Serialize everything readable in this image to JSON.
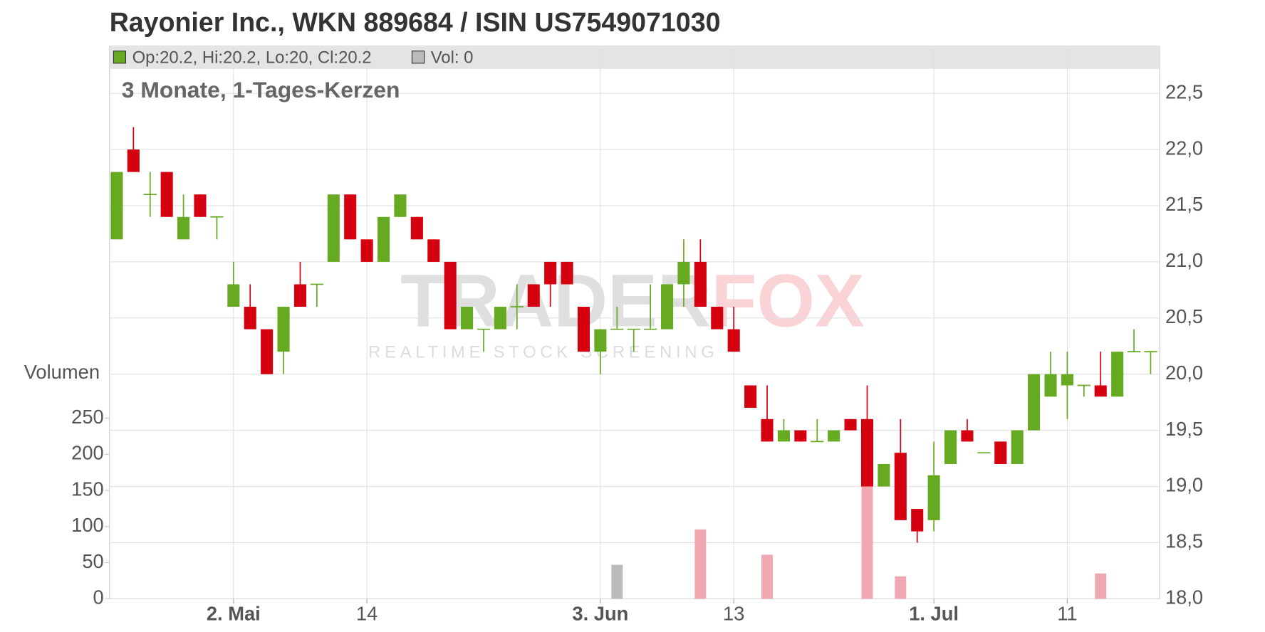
{
  "chart_data": {
    "type": "candlestick",
    "title": "Rayonier Inc., WKN 889684 / ISIN US7549071030",
    "subtitle": "3 Monate, 1-Tages-Kerzen",
    "volume_label": "Volumen",
    "legend": [
      {
        "label": "Op:20.2, Hi:20.2, Lo:20, Cl:20.2",
        "color": "#66aa22"
      },
      {
        "label": "Vol: 0",
        "color": "#bbbbbb"
      }
    ],
    "watermark": [
      "TRADER",
      "FOX"
    ],
    "watermark_tagline": "REALTIME STOCK SCREENING",
    "categories": [
      null,
      null,
      null,
      null,
      null,
      null,
      null,
      "2. Mai",
      null,
      null,
      null,
      null,
      null,
      null,
      null,
      "14",
      null,
      null,
      null,
      null,
      null,
      null,
      null,
      null,
      null,
      null,
      null,
      null,
      null,
      "3. Jun",
      null,
      null,
      null,
      null,
      null,
      null,
      null,
      "13",
      null,
      null,
      null,
      null,
      null,
      null,
      null,
      null,
      null,
      null,
      null,
      "1. Jul",
      null,
      null,
      null,
      null,
      null,
      null,
      null,
      "11",
      null,
      null,
      null,
      null,
      null
    ],
    "open": [
      21.2,
      22.0,
      21.6,
      21.8,
      21.2,
      21.6,
      21.4,
      20.6,
      20.6,
      20.4,
      20.2,
      20.8,
      20.8,
      21.0,
      21.6,
      21.2,
      21.0,
      21.4,
      21.4,
      21.2,
      21.0,
      20.4,
      20.4,
      20.4,
      20.6,
      20.8,
      21.0,
      21.0,
      20.6,
      20.2,
      20.4,
      20.4,
      20.4,
      20.4,
      20.8,
      21.0,
      20.6,
      20.4,
      19.9,
      19.6,
      19.4,
      19.5,
      19.4,
      19.4,
      19.6,
      19.6,
      19.0,
      19.3,
      18.8,
      18.7,
      19.2,
      19.5,
      19.3,
      19.4,
      19.2,
      19.5,
      19.8,
      19.9,
      19.9,
      19.9,
      19.8,
      20.2,
      20.2
    ],
    "high": [
      21.8,
      22.2,
      21.8,
      21.8,
      21.6,
      21.6,
      21.4,
      21.0,
      20.8,
      20.4,
      20.6,
      21.0,
      20.8,
      21.6,
      21.6,
      21.2,
      21.4,
      21.6,
      21.4,
      21.2,
      21.0,
      20.6,
      20.4,
      20.6,
      20.8,
      20.8,
      21.0,
      21.0,
      20.6,
      20.4,
      20.6,
      20.4,
      20.8,
      20.8,
      21.2,
      21.2,
      20.6,
      20.6,
      19.9,
      19.9,
      19.6,
      19.5,
      19.6,
      19.5,
      19.6,
      19.9,
      19.2,
      19.6,
      18.8,
      19.4,
      19.5,
      19.6,
      19.3,
      19.4,
      19.5,
      20.0,
      20.2,
      20.2,
      19.9,
      20.2,
      20.2,
      20.4,
      20.2
    ],
    "low": [
      21.2,
      21.8,
      21.4,
      21.4,
      21.2,
      21.4,
      21.2,
      20.6,
      20.4,
      20.0,
      20.0,
      20.6,
      20.6,
      21.0,
      21.2,
      21.0,
      21.0,
      21.4,
      21.2,
      21.0,
      20.4,
      20.4,
      20.2,
      20.4,
      20.4,
      20.6,
      20.6,
      20.8,
      20.2,
      20.0,
      20.4,
      20.2,
      20.4,
      20.4,
      20.6,
      20.6,
      20.4,
      20.2,
      19.7,
      19.4,
      19.4,
      19.4,
      19.4,
      19.4,
      19.5,
      19.0,
      19.0,
      18.7,
      18.5,
      18.6,
      19.2,
      19.4,
      19.3,
      19.2,
      19.2,
      19.5,
      19.8,
      19.6,
      19.8,
      19.8,
      19.8,
      20.2,
      20.0
    ],
    "close": [
      21.8,
      21.8,
      21.6,
      21.4,
      21.4,
      21.4,
      21.4,
      20.8,
      20.4,
      20.0,
      20.6,
      20.6,
      20.8,
      21.6,
      21.2,
      21.0,
      21.4,
      21.6,
      21.2,
      21.0,
      20.4,
      20.6,
      20.4,
      20.6,
      20.6,
      20.6,
      20.8,
      20.8,
      20.2,
      20.4,
      20.4,
      20.4,
      20.4,
      20.8,
      21.0,
      20.6,
      20.4,
      20.2,
      19.7,
      19.4,
      19.5,
      19.4,
      19.4,
      19.5,
      19.5,
      19.0,
      19.2,
      18.7,
      18.6,
      19.1,
      19.5,
      19.4,
      19.3,
      19.2,
      19.5,
      20.0,
      20.0,
      20.0,
      19.9,
      19.8,
      20.2,
      20.2,
      20.2
    ],
    "volume": [
      0,
      0,
      0,
      0,
      0,
      0,
      0,
      0,
      0,
      0,
      0,
      0,
      0,
      0,
      0,
      0,
      0,
      0,
      0,
      0,
      0,
      0,
      0,
      0,
      0,
      0,
      0,
      0,
      0,
      0,
      47,
      0,
      0,
      0,
      0,
      96,
      0,
      0,
      0,
      61,
      0,
      0,
      0,
      0,
      0,
      156,
      0,
      31,
      0,
      0,
      0,
      0,
      0,
      0,
      0,
      0,
      0,
      0,
      0,
      35,
      0,
      0,
      0
    ],
    "up_color": "#66aa22",
    "down_color": "#d40010",
    "volume_up_color": "#b5d98f",
    "volume_down_color": "#f0a8b0",
    "volume_flat_color": "#bbbbbb",
    "ylim": [
      18,
      22.92
    ],
    "yticks": [
      {
        "value": 18,
        "label": "18,0"
      },
      {
        "value": 18.5,
        "label": "18,5"
      },
      {
        "value": 19,
        "label": "19,0"
      },
      {
        "value": 19.5,
        "label": "19,5"
      },
      {
        "value": 20,
        "label": "20,0"
      },
      {
        "value": 20.5,
        "label": "20,5"
      },
      {
        "value": 21,
        "label": "21,0"
      },
      {
        "value": 21.5,
        "label": "21,5"
      },
      {
        "value": 22,
        "label": "22,0"
      },
      {
        "value": 22.5,
        "label": "22,5"
      }
    ],
    "volume_ylim": [
      0,
      765
    ],
    "volume_yticks": [
      0,
      50,
      100,
      150,
      200,
      250
    ],
    "grid": true
  }
}
